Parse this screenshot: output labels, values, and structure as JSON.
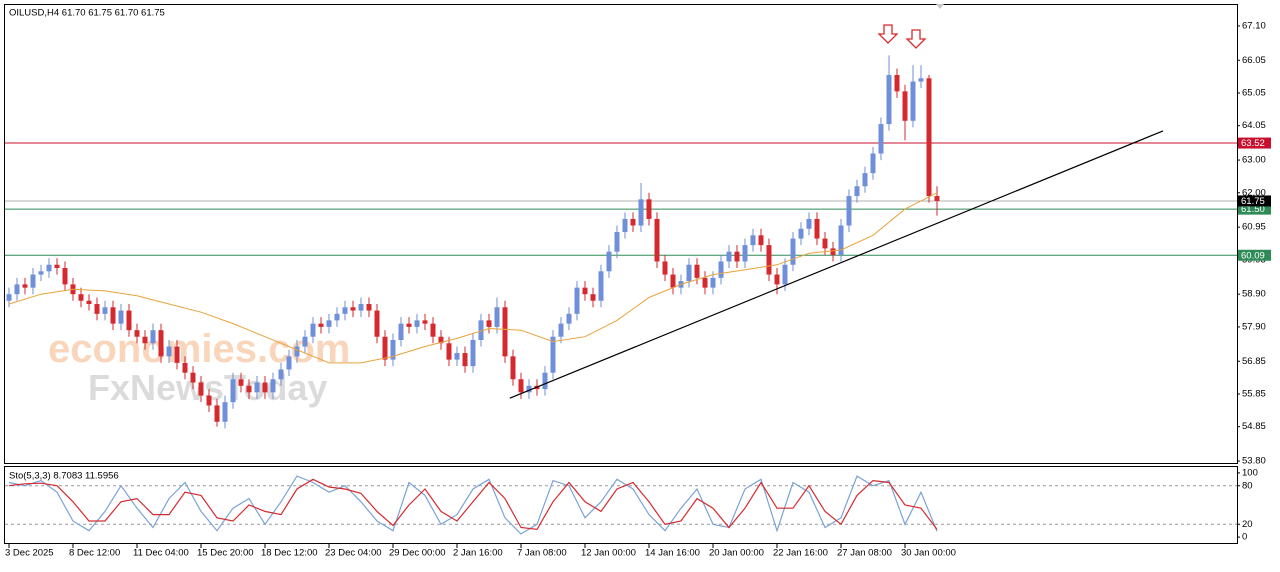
{
  "chart_data": [
    {
      "type": "candlestick",
      "title": "OILUSD,H4  61.70 61.75 61.70 61.75",
      "watermark": [
        "economies.com",
        "FxNewsToday"
      ],
      "up_color": "#6f8fd8",
      "down_color": "#d42a2f",
      "xlim": [
        -0.5,
        153.5
      ],
      "xticks": [
        {
          "value": 0,
          "label": "3 Dec 2025"
        },
        {
          "value": 8,
          "label": "8 Dec 12:00"
        },
        {
          "value": 16,
          "label": "11 Dec 04:00"
        },
        {
          "value": 24,
          "label": "15 Dec 20:00"
        },
        {
          "value": 32,
          "label": "18 Dec 12:00"
        },
        {
          "value": 40,
          "label": "23 Dec 04:00"
        },
        {
          "value": 48,
          "label": "29 Dec 00:00"
        },
        {
          "value": 56,
          "label": "2 Jan 16:00"
        },
        {
          "value": 64,
          "label": "7 Jan 08:00"
        },
        {
          "value": 72,
          "label": "12 Jan 00:00"
        },
        {
          "value": 80,
          "label": "14 Jan 16:00"
        },
        {
          "value": 88,
          "label": "20 Jan 00:00"
        },
        {
          "value": 96,
          "label": "22 Jan 16:00"
        },
        {
          "value": 104,
          "label": "27 Jan 08:00"
        },
        {
          "value": 112,
          "label": "30 Jan 00:00"
        }
      ],
      "ylim": [
        53.74,
        67.74
      ],
      "yticks": [
        {
          "value": 67.1,
          "label": "67.10"
        },
        {
          "value": 66.05,
          "label": "66.05"
        },
        {
          "value": 65.05,
          "label": "65.05"
        },
        {
          "value": 64.05,
          "label": "64.05"
        },
        {
          "value": 63,
          "label": "63.00"
        },
        {
          "value": 62,
          "label": "62.00"
        },
        {
          "value": 60.95,
          "label": "60.95"
        },
        {
          "value": 59.95,
          "label": "59.95"
        },
        {
          "value": 58.9,
          "label": "58.90"
        },
        {
          "value": 57.9,
          "label": "57.90"
        },
        {
          "value": 56.85,
          "label": "56.85"
        },
        {
          "value": 55.85,
          "label": "55.85"
        },
        {
          "value": 54.85,
          "label": "54.85"
        },
        {
          "value": 53.8,
          "label": "53.80"
        }
      ],
      "ohlc": [
        [
          58.7,
          59.1,
          58.5,
          58.9
        ],
        [
          58.9,
          59.4,
          58.7,
          59.2
        ],
        [
          59.2,
          59.4,
          58.9,
          59.1
        ],
        [
          59.1,
          59.7,
          58.9,
          59.5
        ],
        [
          59.5,
          59.8,
          59.3,
          59.6
        ],
        [
          59.6,
          60.0,
          59.4,
          59.8
        ],
        [
          59.8,
          60.0,
          59.5,
          59.7
        ],
        [
          59.7,
          59.9,
          59.0,
          59.2
        ],
        [
          59.2,
          59.4,
          58.7,
          58.9
        ],
        [
          58.9,
          59.1,
          58.5,
          58.7
        ],
        [
          58.7,
          58.9,
          58.4,
          58.6
        ],
        [
          58.6,
          58.8,
          58.1,
          58.3
        ],
        [
          58.3,
          58.7,
          58.1,
          58.5
        ],
        [
          58.5,
          58.7,
          57.8,
          58.0
        ],
        [
          58.0,
          58.6,
          57.8,
          58.4
        ],
        [
          58.4,
          58.6,
          57.6,
          57.8
        ],
        [
          57.8,
          58.0,
          57.4,
          57.6
        ],
        [
          57.6,
          57.8,
          57.2,
          57.4
        ],
        [
          57.4,
          58.0,
          57.2,
          57.8
        ],
        [
          57.8,
          58.0,
          56.8,
          57.0
        ],
        [
          57.0,
          57.5,
          56.8,
          57.3
        ],
        [
          57.3,
          57.5,
          56.6,
          56.8
        ],
        [
          56.8,
          57.0,
          56.3,
          56.5
        ],
        [
          56.5,
          56.7,
          56.0,
          56.2
        ],
        [
          56.2,
          56.4,
          55.6,
          55.8
        ],
        [
          55.8,
          56.0,
          55.3,
          55.5
        ],
        [
          55.5,
          55.7,
          54.85,
          55.0
        ],
        [
          55.0,
          55.8,
          54.8,
          55.6
        ],
        [
          55.6,
          56.5,
          55.4,
          56.3
        ],
        [
          56.3,
          56.5,
          55.9,
          56.1
        ],
        [
          56.1,
          56.3,
          55.7,
          55.9
        ],
        [
          55.9,
          56.4,
          55.7,
          56.2
        ],
        [
          56.2,
          56.4,
          55.7,
          55.9
        ],
        [
          55.9,
          56.5,
          55.7,
          56.3
        ],
        [
          56.3,
          56.8,
          56.1,
          56.6
        ],
        [
          56.6,
          57.2,
          56.4,
          57.0
        ],
        [
          57.0,
          57.5,
          56.8,
          57.3
        ],
        [
          57.3,
          57.8,
          57.1,
          57.6
        ],
        [
          57.6,
          58.2,
          57.4,
          58.0
        ],
        [
          58.0,
          58.2,
          57.7,
          57.9
        ],
        [
          57.9,
          58.3,
          57.7,
          58.1
        ],
        [
          58.1,
          58.5,
          57.9,
          58.3
        ],
        [
          58.3,
          58.7,
          58.1,
          58.5
        ],
        [
          58.5,
          58.7,
          58.2,
          58.4
        ],
        [
          58.4,
          58.8,
          58.2,
          58.6
        ],
        [
          58.6,
          58.8,
          58.2,
          58.4
        ],
        [
          58.4,
          58.6,
          57.4,
          57.6
        ],
        [
          57.6,
          57.8,
          56.7,
          56.9
        ],
        [
          56.9,
          57.7,
          56.7,
          57.5
        ],
        [
          57.5,
          58.2,
          57.3,
          58.0
        ],
        [
          58.0,
          58.2,
          57.7,
          57.9
        ],
        [
          57.9,
          58.3,
          57.7,
          58.1
        ],
        [
          58.1,
          58.3,
          57.8,
          58.0
        ],
        [
          58.0,
          58.2,
          57.4,
          57.6
        ],
        [
          57.6,
          57.8,
          57.2,
          57.4
        ],
        [
          57.4,
          57.6,
          56.7,
          56.9
        ],
        [
          56.9,
          57.3,
          56.7,
          57.1
        ],
        [
          57.1,
          57.3,
          56.5,
          56.7
        ],
        [
          56.7,
          57.7,
          56.5,
          57.5
        ],
        [
          57.5,
          58.3,
          57.3,
          58.1
        ],
        [
          58.1,
          58.3,
          57.7,
          57.9
        ],
        [
          57.9,
          58.8,
          57.7,
          58.5
        ],
        [
          58.5,
          58.7,
          56.8,
          57.0
        ],
        [
          57.0,
          57.2,
          56.1,
          56.3
        ],
        [
          56.3,
          56.5,
          55.7,
          55.9
        ],
        [
          55.9,
          56.3,
          55.7,
          56.1
        ],
        [
          56.1,
          56.3,
          55.8,
          56.0
        ],
        [
          56.0,
          56.7,
          55.8,
          56.5
        ],
        [
          56.5,
          57.8,
          56.3,
          57.6
        ],
        [
          57.6,
          58.2,
          57.4,
          58.0
        ],
        [
          58.0,
          58.5,
          57.8,
          58.3
        ],
        [
          58.3,
          59.3,
          58.1,
          59.1
        ],
        [
          59.1,
          59.3,
          58.7,
          58.9
        ],
        [
          58.9,
          59.1,
          58.5,
          58.7
        ],
        [
          58.7,
          59.8,
          58.5,
          59.6
        ],
        [
          59.6,
          60.4,
          59.4,
          60.2
        ],
        [
          60.2,
          61.0,
          60.0,
          60.8
        ],
        [
          60.8,
          61.4,
          60.6,
          61.2
        ],
        [
          61.2,
          61.4,
          60.8,
          61.0
        ],
        [
          61.0,
          62.3,
          60.8,
          61.8
        ],
        [
          61.8,
          62.0,
          61.0,
          61.2
        ],
        [
          61.2,
          61.4,
          59.7,
          59.9
        ],
        [
          59.9,
          60.1,
          59.3,
          59.5
        ],
        [
          59.5,
          59.7,
          58.9,
          59.1
        ],
        [
          59.1,
          59.5,
          58.9,
          59.3
        ],
        [
          59.3,
          60.0,
          59.1,
          59.8
        ],
        [
          59.8,
          60.0,
          59.2,
          59.4
        ],
        [
          59.4,
          59.6,
          58.9,
          59.1
        ],
        [
          59.1,
          59.6,
          58.9,
          59.4
        ],
        [
          59.4,
          60.1,
          59.2,
          59.9
        ],
        [
          59.9,
          60.4,
          59.7,
          60.2
        ],
        [
          60.2,
          60.4,
          59.7,
          59.9
        ],
        [
          59.9,
          60.6,
          59.7,
          60.4
        ],
        [
          60.4,
          60.9,
          60.2,
          60.7
        ],
        [
          60.7,
          60.9,
          60.2,
          60.4
        ],
        [
          60.4,
          60.6,
          59.3,
          59.5
        ],
        [
          59.5,
          59.7,
          58.9,
          59.2
        ],
        [
          59.2,
          60.0,
          59.0,
          59.8
        ],
        [
          59.8,
          60.8,
          59.6,
          60.6
        ],
        [
          60.6,
          61.1,
          60.4,
          60.9
        ],
        [
          60.9,
          61.4,
          60.7,
          61.2
        ],
        [
          61.2,
          61.4,
          60.4,
          60.6
        ],
        [
          60.6,
          60.8,
          60.1,
          60.3
        ],
        [
          60.3,
          60.5,
          59.9,
          60.1
        ],
        [
          60.1,
          61.2,
          59.9,
          61.0
        ],
        [
          61.0,
          62.1,
          60.8,
          61.9
        ],
        [
          61.9,
          62.4,
          61.7,
          62.2
        ],
        [
          62.2,
          62.8,
          62.0,
          62.6
        ],
        [
          62.6,
          63.4,
          62.4,
          63.2
        ],
        [
          63.2,
          64.3,
          63.0,
          64.1
        ],
        [
          64.1,
          66.2,
          63.9,
          65.6
        ],
        [
          65.6,
          65.8,
          64.9,
          65.1
        ],
        [
          65.1,
          65.3,
          63.6,
          64.2
        ],
        [
          64.2,
          65.9,
          64.0,
          65.4
        ],
        [
          65.4,
          65.9,
          65.2,
          65.5
        ],
        [
          65.5,
          65.6,
          61.7,
          61.9
        ],
        [
          61.9,
          62.2,
          61.3,
          61.75
        ]
      ],
      "ma": {
        "color": "#e8a33a",
        "x": [
          0,
          4,
          8,
          12,
          16,
          20,
          24,
          28,
          32,
          36,
          40,
          44,
          48,
          52,
          56,
          60,
          64,
          68,
          72,
          76,
          80,
          84,
          88,
          92,
          96,
          100,
          104,
          108,
          112,
          116
        ],
        "values": [
          58.6,
          58.9,
          59.05,
          59.0,
          58.85,
          58.6,
          58.35,
          58.0,
          57.6,
          57.2,
          56.8,
          56.8,
          57.0,
          57.3,
          57.55,
          57.85,
          57.8,
          57.45,
          57.6,
          58.1,
          58.8,
          59.2,
          59.5,
          59.65,
          59.8,
          60.15,
          60.25,
          60.7,
          61.5,
          62.0
        ]
      },
      "levels": {
        "values": [
          63.52,
          61.5,
          60.09,
          61.75
        ],
        "value_labels": [
          "63.52",
          "61.50",
          "60.09",
          "61.75"
        ],
        "line_colors": [
          "#c8102e",
          "#2e8b57",
          "#2e8b57",
          "#b0b0b0"
        ],
        "label_colors": [
          "#c8102e",
          "#2e8b57",
          "#2e8b57",
          "#000000"
        ]
      },
      "trendline": {
        "color": "#000000",
        "x": [
          62.6,
          144.25
        ],
        "values": [
          55.72,
          63.89
        ]
      }
    },
    {
      "type": "line",
      "title": "Sto(5,3,3) 8.7083 11.5956",
      "xlim": [
        -0.5,
        153.5
      ],
      "ylim": [
        -9.2,
        109.2
      ],
      "yticks": [
        0,
        20,
        80,
        100
      ],
      "x": [
        0,
        2,
        4,
        6,
        8,
        10,
        12,
        14,
        16,
        18,
        20,
        22,
        24,
        26,
        28,
        30,
        32,
        34,
        36,
        38,
        40,
        42,
        44,
        46,
        48,
        50,
        52,
        54,
        56,
        58,
        60,
        62,
        64,
        66,
        68,
        70,
        72,
        74,
        76,
        78,
        80,
        82,
        84,
        86,
        88,
        90,
        92,
        94,
        96,
        98,
        100,
        102,
        104,
        106,
        108,
        110,
        112,
        114,
        116
      ],
      "series": [
        {
          "color": "#7ba3d6",
          "values": [
            85,
            80,
            88,
            70,
            25,
            10,
            40,
            80,
            45,
            15,
            60,
            85,
            40,
            10,
            45,
            60,
            20,
            55,
            95,
            85,
            70,
            80,
            55,
            25,
            10,
            85,
            65,
            20,
            35,
            75,
            90,
            30,
            5,
            20,
            88,
            80,
            30,
            55,
            90,
            75,
            35,
            10,
            45,
            75,
            20,
            15,
            75,
            90,
            10,
            85,
            70,
            15,
            30,
            95,
            80,
            88,
            20,
            70,
            9
          ]
        },
        {
          "color": "#d42a2f",
          "values": [
            80,
            83,
            84,
            80,
            55,
            25,
            25,
            55,
            60,
            35,
            35,
            70,
            65,
            30,
            25,
            50,
            40,
            35,
            75,
            90,
            78,
            75,
            68,
            40,
            18,
            50,
            75,
            40,
            25,
            55,
            85,
            60,
            15,
            12,
            55,
            85,
            55,
            40,
            75,
            85,
            55,
            20,
            25,
            60,
            45,
            15,
            45,
            85,
            45,
            45,
            80,
            40,
            20,
            65,
            88,
            85,
            50,
            45,
            12
          ]
        }
      ]
    }
  ]
}
